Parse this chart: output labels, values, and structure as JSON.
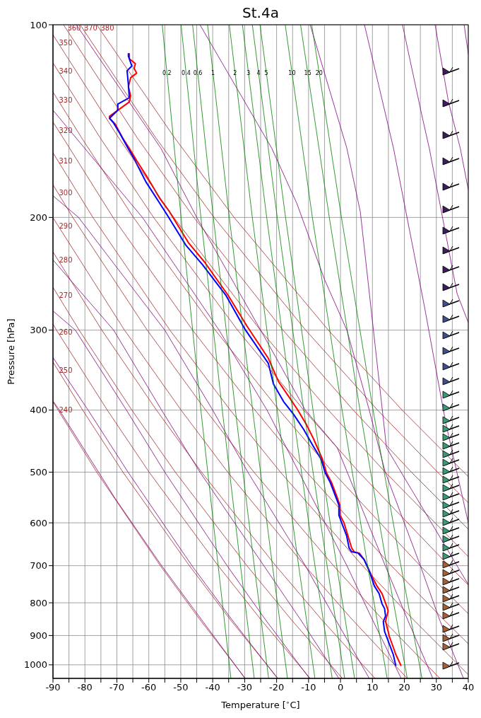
{
  "chart_data": {
    "type": "line",
    "title": "St.4a",
    "xlabel": "Temperature [$^{∘}$C]",
    "ylabel": "Pressure [hPa]",
    "xlim": [
      -90,
      40
    ],
    "xticks": [
      -90,
      {
        "value": -85,
        "label": null
      },
      -80,
      {
        "value": -75,
        "label": null
      },
      -70,
      {
        "value": -65,
        "label": null
      },
      -60,
      {
        "value": -55,
        "label": null
      },
      -50,
      {
        "value": -45,
        "label": null
      },
      -40,
      {
        "value": -35,
        "label": null
      },
      -30,
      {
        "value": -25,
        "label": null
      },
      -20,
      {
        "value": -15,
        "label": null
      },
      -10,
      {
        "value": -5,
        "label": null
      },
      0,
      {
        "value": 5,
        "label": null
      },
      10,
      {
        "value": 15,
        "label": null
      },
      20,
      {
        "value": 25,
        "label": null
      },
      30,
      {
        "value": 35,
        "label": null
      },
      40
    ],
    "ylim": [
      1050,
      100
    ],
    "yticks": [
      100,
      200,
      300,
      400,
      500,
      600,
      700,
      800,
      900,
      1000
    ],
    "log": "y",
    "grid": true,
    "series": [
      {
        "color": "#ff0000",
        "x": [
          18.9,
          17.3,
          15.3,
          14.1,
          14.9,
          14.6,
          13.0,
          11.4,
          9.0,
          7.4,
          5.9,
          4.3,
          3.5,
          2.3,
          1.1,
          -0.1,
          -0.2,
          -1.3,
          -2.8,
          -4.4,
          -5.6,
          -8.4,
          -10.7,
          -13.5,
          -16.2,
          -19.4,
          -22.6,
          -29.2,
          -35.1,
          -42.5,
          -47.6,
          -53.5,
          -56.5,
          -60.2,
          -63.8,
          -66.1,
          -68.3,
          -70.5,
          -72.3,
          -72.3,
          -69.7,
          -66.1,
          -65.7,
          -66.4,
          -65.7,
          -63.8,
          -64.6,
          -64.2,
          -66.1,
          -66.1
        ],
        "values": [
          1002,
          963,
          903,
          855,
          824,
          814,
          774,
          753,
          713,
          685,
          669,
          666,
          657,
          628,
          600,
          584,
          563,
          543,
          519,
          501,
          478,
          444,
          421,
          399,
          381,
          361,
          332,
          296,
          265,
          235,
          219,
          196,
          187,
          174,
          163,
          156,
          150,
          143,
          140,
          139,
          136,
          132,
          129,
          125,
          121,
          119,
          117,
          115,
          113,
          111
        ]
      },
      {
        "color": "#0000ff",
        "x": [
          17.3,
          16.5,
          13.8,
          13.4,
          14.1,
          13.8,
          13.0,
          12.1,
          10.6,
          9.0,
          7.4,
          5.5,
          3.5,
          2.7,
          1.9,
          0.7,
          -0.5,
          -0.5,
          -1.7,
          -3.2,
          -4.8,
          -6.0,
          -8.8,
          -11.5,
          -14.7,
          -17.8,
          -21.0,
          -22.6,
          -29.9,
          -35.8,
          -43.2,
          -48.4,
          -54.3,
          -57.2,
          -60.9,
          -64.6,
          -66.8,
          -69.0,
          -71.2,
          -72.3,
          -69.7,
          -69.7,
          -66.1,
          -66.4,
          -66.8,
          -65.3,
          -66.4,
          -66.4
        ],
        "values": [
          1002,
          963,
          887,
          856,
          839,
          817,
          803,
          774,
          753,
          713,
          685,
          669,
          666,
          657,
          628,
          606,
          584,
          563,
          543,
          519,
          501,
          478,
          453,
          429,
          406,
          388,
          364,
          338,
          299,
          265,
          237,
          221,
          198,
          188,
          176,
          162,
          155,
          148,
          142,
          140,
          136,
          133,
          130,
          124,
          118,
          116,
          112,
          111
        ]
      },
      {
        "name": "240",
        "color": "#a52a2a",
        "x": [
          -90,
          -88.4,
          -76.3,
          -56.4,
          -44.0,
          -29.8
        ],
        "values": [
          388,
          400,
          500,
          700,
          850,
          1050
        ]
      },
      {
        "name": "250",
        "color": "#a52a2a",
        "x": [
          -90,
          -80.7,
          -68.1,
          -47.3,
          -34.5,
          -19.6
        ],
        "values": [
          336.5,
          400,
          500,
          700,
          850,
          1050
        ]
      },
      {
        "name": "260",
        "color": "#a52a2a",
        "x": [
          -90,
          -88.9,
          -73.0,
          -59.9,
          -38.3,
          -24.9,
          -9.5
        ],
        "values": [
          293.4,
          300,
          400,
          500,
          700,
          850,
          1050
        ]
      },
      {
        "name": "270",
        "color": "#a52a2a",
        "x": [
          -90,
          -81.8,
          -65.3,
          -51.7,
          -29.3,
          -15.4,
          0.6
        ],
        "values": [
          257.1,
          300,
          400,
          500,
          700,
          850,
          1050
        ]
      },
      {
        "name": "280",
        "color": "#a52a2a",
        "x": [
          -90,
          -74.7,
          -57.6,
          -43.5,
          -20.3,
          -5.9,
          10.8
        ],
        "values": [
          226.4,
          300,
          400,
          500,
          700,
          850,
          1050
        ]
      },
      {
        "name": "290",
        "color": "#a52a2a",
        "x": [
          -90,
          -67.6,
          -49.9,
          -35.3,
          -11.2,
          3.7,
          20.9
        ],
        "values": [
          200.2,
          300,
          400,
          500,
          700,
          850,
          1050
        ]
      },
      {
        "name": "300",
        "color": "#a52a2a",
        "x": [
          -90,
          -83.8,
          -60.5,
          -42.2,
          -27.1,
          -2.2,
          13.2,
          31.1
        ],
        "values": [
          177.8,
          200,
          300,
          400,
          500,
          700,
          850,
          1050
        ]
      },
      {
        "name": "310",
        "color": "#a52a2a",
        "x": [
          -90,
          -77.5,
          -53.4,
          -34.5,
          -18.8,
          6.9,
          22.8,
          40
        ],
        "values": [
          158.5,
          200,
          300,
          400,
          500,
          700,
          850,
          1036
        ]
      },
      {
        "name": "320",
        "color": "#a52a2a",
        "x": [
          -90,
          -86.9,
          -71.2,
          -46.3,
          -26.8,
          -10.6,
          15.9,
          32.3,
          40
        ],
        "values": [
          141.9,
          150,
          200,
          300,
          400,
          500,
          700,
          850,
          927
        ]
      },
      {
        "name": "330",
        "color": "#a52a2a",
        "x": [
          -90,
          -81.1,
          -64.8,
          -39.2,
          -19.2,
          -2.4,
          24.9,
          40
        ],
        "values": [
          127.4,
          150,
          200,
          300,
          400,
          500,
          700,
          832
        ]
      },
      {
        "name": "340",
        "color": "#a52a2a",
        "x": [
          -90,
          -75.3,
          -58.5,
          -32.2,
          -11.5,
          5.8,
          33.9,
          40
        ],
        "values": [
          114.7,
          150,
          200,
          300,
          400,
          500,
          700,
          750
        ]
      },
      {
        "name": "350",
        "color": "#a52a2a",
        "x": [
          -90,
          -69.5,
          -52.2,
          -25.1,
          -3.8,
          14.0,
          40
        ],
        "values": [
          103.7,
          150,
          200,
          300,
          400,
          500,
          677.5
        ]
      },
      {
        "name": "360",
        "color": "#a52a2a",
        "x": [
          -86.7,
          -63.7,
          -45.9,
          -18.0,
          4.0,
          22.2,
          40
        ],
        "values": [
          100,
          150,
          200,
          300,
          400,
          500,
          614
        ]
      },
      {
        "name": "370",
        "color": "#a52a2a",
        "x": [
          -81.5,
          -57.9,
          -39.6,
          -10.9,
          11.6,
          30.4,
          40
        ],
        "values": [
          100,
          150,
          200,
          300,
          400,
          500,
          558
        ]
      },
      {
        "name": "380",
        "color": "#a52a2a",
        "x": [
          -76.3,
          -52.0,
          -33.3,
          -3.8,
          19.3,
          38.6,
          40
        ],
        "values": [
          100,
          150,
          200,
          300,
          400,
          500,
          508
        ]
      },
      {
        "color": "#800080",
        "x": [
          -90,
          -88,
          -70.5,
          -56,
          -43.5,
          -29.9
        ],
        "values": [
          387,
          400,
          550,
          700,
          850,
          1050
        ]
      },
      {
        "color": "#800080",
        "x": [
          -90,
          -79,
          -66.5,
          -46.5,
          -34,
          -19.7
        ],
        "values": [
          331,
          400,
          500,
          700,
          850,
          1050
        ]
      },
      {
        "color": "#800080",
        "x": [
          -90,
          -83,
          -67,
          -55,
          -35.5,
          -23.5,
          -9.7
        ],
        "values": [
          280,
          300,
          400,
          500,
          700,
          850,
          1050
        ]
      },
      {
        "color": "#800080",
        "x": [
          -90,
          -71,
          -56,
          -44,
          -24,
          -12.5,
          -0.5
        ],
        "values": [
          233,
          300,
          400,
          500,
          700,
          850,
          1050
        ]
      },
      {
        "color": "#800080",
        "x": [
          -90,
          -82,
          -55,
          -40,
          -29,
          -11,
          -1.5,
          9
        ],
        "values": [
          185,
          200,
          300,
          400,
          500,
          700,
          850,
          1050
        ]
      },
      {
        "color": "#800080",
        "x": [
          -90,
          -62,
          -38,
          -23,
          -13,
          2,
          10,
          19
        ],
        "values": [
          136,
          200,
          300,
          400,
          500,
          700,
          850,
          1050
        ]
      },
      {
        "color": "#800080",
        "x": [
          -82.7,
          -56.2,
          -45,
          -25,
          -11,
          -1,
          14,
          21,
          28.9
        ],
        "values": [
          100,
          156,
          200,
          300,
          400,
          458,
          700,
          850,
          1050
        ]
      },
      {
        "color": "#800080",
        "x": [
          -44,
          -21.5,
          -13.7,
          -5,
          2,
          9,
          14,
          25,
          31,
          38.5
        ],
        "values": [
          100,
          156,
          190,
          250,
          300,
          400,
          500,
          700,
          850,
          1050
        ]
      },
      {
        "color": "#800080",
        "x": [
          -9.5,
          2,
          6.2,
          14.4,
          40
        ],
        "values": [
          100,
          156,
          196,
          458,
          749
        ]
      },
      {
        "color": "#800080",
        "x": [
          7.5,
          16.6,
          26.3,
          33,
          40
        ],
        "values": [
          100,
          156,
          276,
          420,
          600
        ]
      },
      {
        "color": "#800080",
        "x": [
          19.4,
          25.4,
          27.8,
          36.5,
          40
        ],
        "values": [
          100,
          138,
          156,
          263,
          292
        ]
      },
      {
        "color": "#800080",
        "x": [
          29.6,
          33.8,
          37.5,
          40
        ],
        "values": [
          100,
          132,
          156,
          181
        ]
      },
      {
        "color": "#800080",
        "x": [
          38.7,
          40
        ],
        "values": [
          100,
          111
        ]
      },
      {
        "name": "0.2",
        "color": "#008000",
        "x": [
          -34.3,
          -38.3,
          -43.7,
          -49.9,
          -55.8
        ],
        "values": [
          1050,
          700,
          400,
          200,
          100
        ]
      },
      {
        "name": "0.4",
        "color": "#008000",
        "x": [
          -27.0,
          -31.3,
          -37.0,
          -43.7,
          -49.9
        ],
        "values": [
          1050,
          700,
          400,
          200,
          100
        ]
      },
      {
        "name": "0.6",
        "color": "#008000",
        "x": [
          -22.5,
          -27.0,
          -32.9,
          -39.8,
          -46.3
        ],
        "values": [
          1050,
          700,
          400,
          200,
          100
        ]
      },
      {
        "name": "1",
        "color": "#008000",
        "x": [
          -16.6,
          -21.3,
          -27.5,
          -34.8,
          -41.6
        ],
        "values": [
          1050,
          700,
          400,
          200,
          100
        ]
      },
      {
        "name": "2",
        "color": "#008000",
        "x": [
          -8.0,
          -13.1,
          -19.8,
          -27.6,
          -34.8
        ],
        "values": [
          1050,
          700,
          400,
          200,
          100
        ]
      },
      {
        "name": "3",
        "color": "#008000",
        "x": [
          -2.6,
          -8.0,
          -15.0,
          -23.1,
          -30.7
        ],
        "values": [
          1050,
          700,
          400,
          200,
          100
        ]
      },
      {
        "name": "4",
        "color": "#008000",
        "x": [
          1.3,
          -4.2,
          -11.5,
          -19.8,
          -27.6
        ],
        "values": [
          1050,
          700,
          400,
          200,
          100
        ]
      },
      {
        "name": "5",
        "color": "#008000",
        "x": [
          4.4,
          -1.2,
          -8.6,
          -17.2,
          -25.2
        ],
        "values": [
          1050,
          700,
          400,
          200,
          100
        ]
      },
      {
        "name": "10",
        "color": "#008000",
        "x": [
          14.6,
          8.5,
          0.5,
          -8.8,
          -17.3
        ],
        "values": [
          1050,
          700,
          400,
          200,
          100
        ]
      },
      {
        "name": "15",
        "color": "#008000",
        "x": [
          20.9,
          14.5,
          6.1,
          -3.5,
          -12.5
        ],
        "values": [
          1050,
          700,
          400,
          200,
          100
        ]
      },
      {
        "name": "20",
        "color": "#008000",
        "x": [
          25.5,
          18.9,
          10.2,
          0.3,
          -9.0
        ],
        "values": [
          1050,
          700,
          400,
          200,
          100
        ]
      }
    ]
  }
}
